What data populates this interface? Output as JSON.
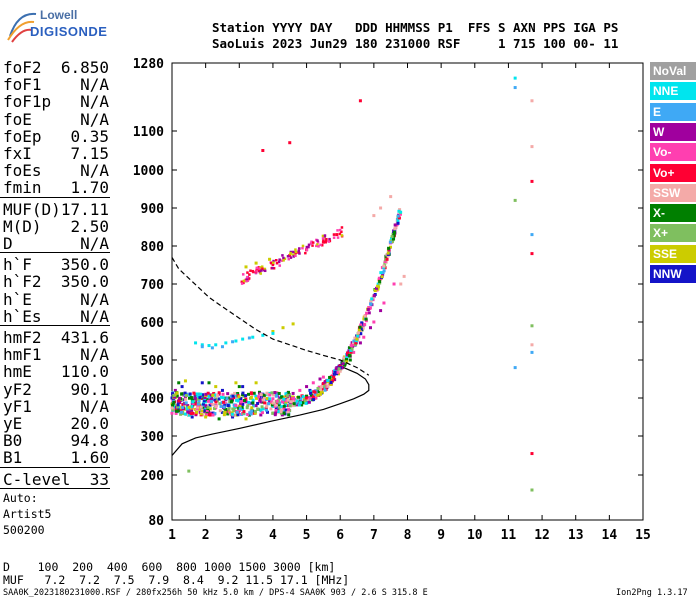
{
  "logo": {
    "line1": "Lowell",
    "line2": "DIGISONDE"
  },
  "header": {
    "line1": "Station YYYY DAY   DDD HHMMSS P1  FFS S AXN PPS IGA PS",
    "line2": "SaoLuis 2023 Jun29 180 231000 RSF     1 715 100 00- 11"
  },
  "params_block1": [
    {
      "k": "foF2",
      "v": "6.850"
    },
    {
      "k": "foF1",
      "v": "N/A"
    },
    {
      "k": "foF1p",
      "v": "N/A"
    },
    {
      "k": "foE",
      "v": "N/A"
    },
    {
      "k": "foEp",
      "v": "0.35"
    },
    {
      "k": "fxI",
      "v": "7.15"
    },
    {
      "k": "foEs",
      "v": "N/A"
    },
    {
      "k": "fmin",
      "v": "1.70"
    }
  ],
  "params_block2": [
    {
      "k": "MUF(D)",
      "v": "17.11"
    },
    {
      "k": "M(D)",
      "v": "2.50"
    },
    {
      "k": "D",
      "v": "N/A"
    }
  ],
  "params_block3": [
    {
      "k": "h`F",
      "v": "350.0"
    },
    {
      "k": "h`F2",
      "v": "350.0"
    },
    {
      "k": "h`E",
      "v": "N/A"
    },
    {
      "k": "h`Es",
      "v": "N/A"
    }
  ],
  "params_block4": [
    {
      "k": "hmF2",
      "v": "431.6"
    },
    {
      "k": "hmF1",
      "v": "N/A"
    },
    {
      "k": "hmE",
      "v": "110.0"
    },
    {
      "k": "yF2",
      "v": "90.1"
    },
    {
      "k": "yF1",
      "v": "N/A"
    },
    {
      "k": "yE",
      "v": "20.0"
    },
    {
      "k": "B0",
      "v": "94.8"
    },
    {
      "k": "B1",
      "v": "1.60"
    }
  ],
  "clevel": {
    "k": "C-level",
    "v": "33"
  },
  "autoscale": {
    "line1": "Auto:",
    "line2": "Artist5",
    "line3": "500200"
  },
  "legend": [
    {
      "label": "NoVal",
      "color": "#a0a0a0"
    },
    {
      "label": "NNE",
      "color": "#00e5ee"
    },
    {
      "label": "E",
      "color": "#3fa9f5"
    },
    {
      "label": "W",
      "color": "#a0009e"
    },
    {
      "label": "Vo-",
      "color": "#ff3fb0"
    },
    {
      "label": "Vo+",
      "color": "#ff0033"
    },
    {
      "label": "SSW",
      "color": "#f4aaa8"
    },
    {
      "label": "X-",
      "color": "#007f00"
    },
    {
      "label": "X+",
      "color": "#7fbf5f"
    },
    {
      "label": "SSE",
      "color": "#cccc00"
    },
    {
      "label": "NNW",
      "color": "#1414c8"
    }
  ],
  "muf_table": {
    "d_row": "D    100  200  400  600  800 1000 1500 3000 [km]",
    "muf_row": "MUF   7.2  7.2  7.5  7.9  8.4  9.2 11.5 17.1 [MHz]"
  },
  "footer": {
    "left": "SAA0K_2023180231000.RSF / 280fx256h 50 kHz 5.0 km / DPS-4 SAA0K 903 / 2.6 S 315.8 E",
    "right": "Ion2Png 1.3.17"
  },
  "chart_data": {
    "type": "scatter",
    "title": "",
    "xlabel": "",
    "ylabel": "",
    "xlim": [
      1,
      15
    ],
    "ylim": [
      80,
      1280
    ],
    "x_ticks": [
      1,
      2,
      3,
      4,
      5,
      6,
      7,
      8,
      9,
      10,
      11,
      12,
      13,
      14,
      15
    ],
    "y_ticks": [
      80,
      200,
      300,
      400,
      500,
      600,
      700,
      800,
      900,
      1000,
      1100,
      1280
    ],
    "series": [
      {
        "color": "#ff3fb0",
        "points": [
          [
            1.0,
            360
          ],
          [
            1.3,
            370
          ],
          [
            1.6,
            385
          ],
          [
            2.0,
            380
          ],
          [
            2.3,
            375
          ],
          [
            2.6,
            385
          ],
          [
            3.0,
            378
          ],
          [
            3.3,
            385
          ],
          [
            3.6,
            392
          ],
          [
            4.0,
            398
          ],
          [
            4.4,
            405
          ],
          [
            4.8,
            420
          ],
          [
            5.2,
            440
          ],
          [
            5.5,
            455
          ],
          [
            5.8,
            470
          ],
          [
            6.1,
            490
          ],
          [
            6.4,
            520
          ],
          [
            6.7,
            560
          ],
          [
            7.0,
            600
          ],
          [
            7.3,
            650
          ],
          [
            7.6,
            700
          ]
        ]
      },
      {
        "color": "#a0009e",
        "points": [
          [
            1.1,
            420
          ],
          [
            1.4,
            400
          ],
          [
            1.7,
            390
          ],
          [
            2.1,
            395
          ],
          [
            2.4,
            410
          ],
          [
            2.8,
            395
          ],
          [
            3.2,
            390
          ],
          [
            3.5,
            380
          ],
          [
            3.9,
            392
          ],
          [
            4.2,
            400
          ],
          [
            4.6,
            412
          ],
          [
            5.0,
            430
          ],
          [
            5.4,
            450
          ],
          [
            5.9,
            480
          ],
          [
            6.3,
            510
          ],
          [
            6.6,
            545
          ],
          [
            6.9,
            585
          ],
          [
            7.2,
            630
          ]
        ]
      },
      {
        "color": "#1414c8",
        "points": [
          [
            1.0,
            400
          ],
          [
            1.3,
            430
          ],
          [
            1.6,
            350
          ],
          [
            1.9,
            440
          ],
          [
            2.2,
            360
          ],
          [
            2.5,
            420
          ],
          [
            2.8,
            350
          ],
          [
            3.1,
            430
          ],
          [
            3.4,
            365
          ],
          [
            3.7,
            410
          ],
          [
            4.1,
            375
          ],
          [
            4.5,
            390
          ],
          [
            5.1,
            420
          ]
        ]
      },
      {
        "color": "#007f00",
        "points": [
          [
            1.2,
            440
          ],
          [
            1.5,
            355
          ],
          [
            1.8,
            410
          ],
          [
            2.1,
            440
          ],
          [
            2.4,
            345
          ],
          [
            2.7,
            400
          ],
          [
            3.0,
            430
          ],
          [
            3.3,
            355
          ],
          [
            3.6,
            415
          ],
          [
            6.0,
            480
          ],
          [
            6.3,
            500
          ]
        ]
      },
      {
        "color": "#cccc00",
        "points": [
          [
            1.1,
            380
          ],
          [
            1.4,
            445
          ],
          [
            1.7,
            370
          ],
          [
            2.0,
            350
          ],
          [
            2.3,
            430
          ],
          [
            2.6,
            365
          ],
          [
            2.9,
            440
          ],
          [
            3.2,
            345
          ],
          [
            3.5,
            440
          ],
          [
            4.0,
            575
          ],
          [
            4.3,
            585
          ],
          [
            4.6,
            595
          ],
          [
            3.2,
            745
          ],
          [
            3.5,
            755
          ],
          [
            3.9,
            765
          ]
        ]
      },
      {
        "color": "#00e5ee",
        "points": [
          [
            1.7,
            545
          ],
          [
            1.9,
            540
          ],
          [
            2.1,
            538
          ],
          [
            2.3,
            540
          ],
          [
            2.6,
            545
          ],
          [
            2.9,
            550
          ],
          [
            3.1,
            555
          ],
          [
            3.4,
            560
          ],
          [
            3.7,
            565
          ],
          [
            4.0,
            570
          ],
          [
            11.2,
            1240
          ]
        ]
      },
      {
        "color": "#3fa9f5",
        "points": [
          [
            1.9,
            535
          ],
          [
            2.2,
            532
          ],
          [
            2.5,
            535
          ],
          [
            2.8,
            548
          ],
          [
            3.3,
            558
          ],
          [
            11.2,
            1215
          ],
          [
            11.7,
            830
          ],
          [
            11.7,
            520
          ],
          [
            11.2,
            480
          ]
        ]
      },
      {
        "color": "#f4aaa8",
        "points": [
          [
            7.0,
            880
          ],
          [
            7.2,
            900
          ],
          [
            7.5,
            930
          ],
          [
            7.8,
            700
          ],
          [
            7.9,
            720
          ],
          [
            11.7,
            1180
          ],
          [
            11.7,
            1060
          ],
          [
            11.7,
            540
          ]
        ]
      },
      {
        "color": "#ff0033",
        "points": [
          [
            3.2,
            710
          ],
          [
            3.6,
            735
          ],
          [
            4.0,
            755
          ],
          [
            4.5,
            775
          ],
          [
            5.0,
            790
          ],
          [
            5.5,
            810
          ],
          [
            5.9,
            830
          ],
          [
            6.6,
            1180
          ],
          [
            4.5,
            1070
          ],
          [
            3.7,
            1050
          ],
          [
            11.7,
            970
          ],
          [
            11.7,
            780
          ],
          [
            11.7,
            255
          ]
        ]
      },
      {
        "color": "#7fbf5f",
        "points": [
          [
            1.5,
            210
          ],
          [
            11.2,
            920
          ],
          [
            11.7,
            590
          ],
          [
            11.7,
            160
          ]
        ]
      }
    ],
    "curves": [
      {
        "name": "",
        "style": "solid",
        "x": [
          1.0,
          1.3,
          1.7,
          2.2,
          3.0,
          4.0,
          4.8,
          5.5,
          6.0,
          6.4,
          6.7,
          6.85,
          6.85,
          6.75,
          6.5,
          6.1
        ],
        "y": [
          250,
          280,
          295,
          305,
          320,
          340,
          355,
          370,
          385,
          398,
          410,
          420,
          435,
          450,
          465,
          480
        ]
      },
      {
        "name": "",
        "style": "dashed",
        "x": [
          1.0,
          1.2,
          1.5,
          1.8,
          2.1,
          2.5,
          3.0,
          3.5,
          4.0,
          4.5,
          5.0,
          5.5,
          6.0,
          6.5,
          6.85
        ],
        "y": [
          770,
          740,
          715,
          690,
          665,
          640,
          610,
          580,
          555,
          540,
          525,
          512,
          500,
          480,
          460
        ]
      }
    ]
  }
}
